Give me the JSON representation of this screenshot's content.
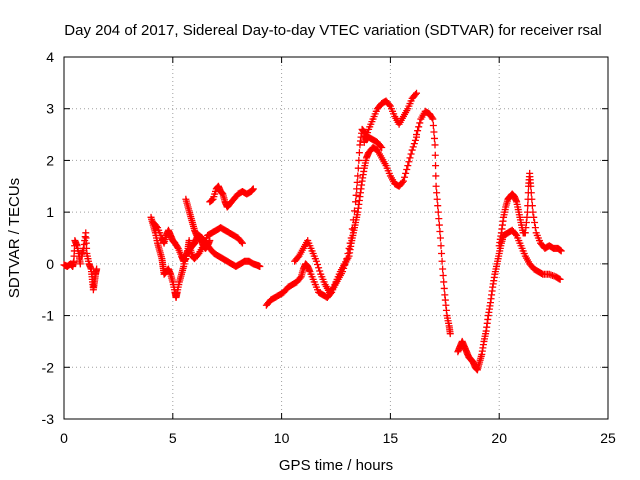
{
  "chart_data": {
    "type": "scatter",
    "title": "Day 204 of 2017, Sidereal Day-to-day VTEC variation (SDTVAR) for receiver rsal",
    "xlabel": "GPS time / hours",
    "ylabel": "SDTVAR / TECUs",
    "xlim": [
      0,
      25
    ],
    "ylim": [
      -3,
      4
    ],
    "xticks": [
      0,
      5,
      10,
      15,
      20,
      25
    ],
    "yticks": [
      -3,
      -2,
      -1,
      0,
      1,
      2,
      3,
      4
    ],
    "grid": true,
    "marker": "plus",
    "color": "#ff0000",
    "series": [
      {
        "points": [
          [
            0.0,
            -0.02
          ],
          [
            0.15,
            -0.05
          ],
          [
            0.3,
            0.0
          ],
          [
            0.4,
            -0.05
          ],
          [
            0.45,
            0.05
          ],
          [
            0.5,
            0.45
          ],
          [
            0.6,
            0.35
          ],
          [
            0.7,
            0.15
          ],
          [
            0.75,
            0.0
          ]
        ]
      },
      {
        "points": [
          [
            0.8,
            0.15
          ],
          [
            0.9,
            0.3
          ],
          [
            1.0,
            0.6
          ],
          [
            1.05,
            0.2
          ],
          [
            1.15,
            0.0
          ],
          [
            1.25,
            -0.1
          ],
          [
            1.3,
            -0.3
          ],
          [
            1.35,
            -0.5
          ],
          [
            1.4,
            -0.35
          ],
          [
            1.45,
            -0.2
          ],
          [
            1.5,
            -0.1
          ]
        ]
      },
      {
        "points": [
          [
            4.0,
            0.9
          ],
          [
            4.1,
            0.75
          ],
          [
            4.2,
            0.6
          ],
          [
            4.3,
            0.4
          ],
          [
            4.4,
            0.25
          ],
          [
            4.5,
            0.1
          ],
          [
            4.55,
            -0.05
          ],
          [
            4.6,
            -0.2
          ],
          [
            4.7,
            -0.15
          ],
          [
            4.8,
            -0.1
          ],
          [
            4.9,
            -0.2
          ],
          [
            5.0,
            -0.35
          ],
          [
            5.1,
            -0.55
          ],
          [
            5.15,
            -0.65
          ],
          [
            5.2,
            -0.55
          ],
          [
            5.3,
            -0.35
          ],
          [
            5.4,
            -0.2
          ],
          [
            5.5,
            -0.05
          ],
          [
            5.6,
            0.15
          ],
          [
            5.7,
            0.25
          ],
          [
            5.8,
            0.3
          ],
          [
            5.9,
            0.35
          ],
          [
            6.0,
            0.4
          ],
          [
            6.1,
            0.5
          ],
          [
            6.2,
            0.55
          ],
          [
            6.35,
            0.5
          ],
          [
            6.5,
            0.4
          ],
          [
            6.7,
            0.3
          ],
          [
            6.9,
            0.2
          ],
          [
            7.1,
            0.15
          ],
          [
            7.3,
            0.1
          ],
          [
            7.5,
            0.05
          ],
          [
            7.7,
            0.0
          ],
          [
            7.9,
            -0.05
          ],
          [
            8.1,
            0.0
          ],
          [
            8.3,
            0.05
          ],
          [
            8.5,
            0.05
          ],
          [
            8.7,
            0.0
          ],
          [
            8.9,
            -0.03
          ],
          [
            9.0,
            -0.05
          ]
        ]
      },
      {
        "points": [
          [
            4.1,
            0.8
          ],
          [
            4.3,
            0.7
          ],
          [
            4.5,
            0.5
          ],
          [
            4.6,
            0.4
          ],
          [
            4.7,
            0.55
          ],
          [
            4.8,
            0.65
          ],
          [
            4.9,
            0.55
          ],
          [
            5.0,
            0.45
          ],
          [
            5.1,
            0.4
          ],
          [
            5.25,
            0.3
          ],
          [
            5.4,
            0.15
          ],
          [
            5.5,
            0.05
          ],
          [
            5.6,
            0.1
          ],
          [
            5.7,
            0.3
          ],
          [
            5.75,
            0.45
          ],
          [
            5.8,
            0.3
          ],
          [
            5.9,
            0.15
          ],
          [
            6.0,
            0.1
          ],
          [
            6.2,
            0.2
          ],
          [
            6.4,
            0.35
          ],
          [
            6.6,
            0.55
          ],
          [
            6.8,
            0.6
          ],
          [
            7.0,
            0.65
          ],
          [
            7.2,
            0.7
          ],
          [
            7.4,
            0.65
          ],
          [
            7.6,
            0.6
          ],
          [
            7.8,
            0.55
          ],
          [
            8.0,
            0.5
          ],
          [
            8.2,
            0.4
          ]
        ]
      },
      {
        "points": [
          [
            5.6,
            1.25
          ],
          [
            5.7,
            1.1
          ],
          [
            5.8,
            0.95
          ],
          [
            5.9,
            0.8
          ],
          [
            6.0,
            0.65
          ],
          [
            6.1,
            0.55
          ],
          [
            6.2,
            0.5
          ],
          [
            6.3,
            0.45
          ],
          [
            6.4,
            0.35
          ],
          [
            6.5,
            0.3
          ],
          [
            6.6,
            0.35
          ],
          [
            6.7,
            0.45
          ]
        ]
      },
      {
        "points": [
          [
            6.7,
            1.2
          ],
          [
            6.85,
            1.25
          ],
          [
            7.0,
            1.45
          ],
          [
            7.1,
            1.5
          ],
          [
            7.2,
            1.4
          ],
          [
            7.3,
            1.35
          ],
          [
            7.4,
            1.2
          ],
          [
            7.5,
            1.1
          ],
          [
            7.6,
            1.15
          ],
          [
            7.8,
            1.25
          ],
          [
            8.0,
            1.35
          ],
          [
            8.2,
            1.4
          ],
          [
            8.4,
            1.35
          ],
          [
            8.6,
            1.4
          ],
          [
            8.7,
            1.45
          ]
        ]
      },
      {
        "points": [
          [
            9.3,
            -0.8
          ],
          [
            9.5,
            -0.7
          ],
          [
            9.7,
            -0.65
          ],
          [
            9.9,
            -0.6
          ],
          [
            10.1,
            -0.55
          ],
          [
            10.3,
            -0.45
          ],
          [
            10.5,
            -0.4
          ],
          [
            10.7,
            -0.35
          ],
          [
            10.9,
            -0.25
          ],
          [
            11.0,
            -0.1
          ],
          [
            11.1,
            0.0
          ],
          [
            11.2,
            -0.05
          ],
          [
            11.3,
            -0.15
          ],
          [
            11.5,
            -0.35
          ],
          [
            11.7,
            -0.55
          ],
          [
            11.9,
            -0.6
          ],
          [
            12.1,
            -0.65
          ],
          [
            12.3,
            -0.55
          ],
          [
            12.5,
            -0.35
          ],
          [
            12.7,
            -0.15
          ],
          [
            12.9,
            0.0
          ],
          [
            13.1,
            0.15
          ],
          [
            13.2,
            0.4
          ],
          [
            13.3,
            0.6
          ],
          [
            13.4,
            0.8
          ],
          [
            13.5,
            1.0
          ],
          [
            13.6,
            1.3
          ],
          [
            13.7,
            1.6
          ],
          [
            13.8,
            1.85
          ],
          [
            13.9,
            2.05
          ],
          [
            14.0,
            2.15
          ],
          [
            14.2,
            2.25
          ],
          [
            14.4,
            2.2
          ],
          [
            14.6,
            2.05
          ],
          [
            14.8,
            1.9
          ],
          [
            15.0,
            1.7
          ],
          [
            15.2,
            1.55
          ],
          [
            15.4,
            1.5
          ],
          [
            15.6,
            1.6
          ],
          [
            15.8,
            1.9
          ],
          [
            16.0,
            2.2
          ],
          [
            16.2,
            2.45
          ]
        ]
      },
      {
        "points": [
          [
            10.6,
            0.05
          ],
          [
            10.8,
            0.15
          ],
          [
            11.0,
            0.3
          ],
          [
            11.2,
            0.45
          ],
          [
            11.4,
            0.25
          ],
          [
            11.6,
            0.05
          ],
          [
            11.8,
            -0.2
          ],
          [
            12.0,
            -0.4
          ],
          [
            12.2,
            -0.55
          ],
          [
            12.4,
            -0.45
          ],
          [
            12.6,
            -0.3
          ],
          [
            12.8,
            -0.15
          ],
          [
            13.0,
            0.1
          ],
          [
            13.2,
            0.5
          ],
          [
            13.4,
            1.2
          ],
          [
            13.5,
            1.7
          ],
          [
            13.6,
            2.3
          ],
          [
            13.7,
            2.6
          ],
          [
            13.8,
            2.55
          ],
          [
            13.9,
            2.4
          ],
          [
            14.0,
            2.45
          ],
          [
            14.2,
            2.4
          ],
          [
            14.4,
            2.35
          ],
          [
            14.6,
            2.25
          ]
        ]
      },
      {
        "points": [
          [
            13.8,
            2.35
          ],
          [
            14.0,
            2.6
          ],
          [
            14.2,
            2.8
          ],
          [
            14.4,
            3.0
          ],
          [
            14.6,
            3.1
          ],
          [
            14.8,
            3.15
          ],
          [
            15.0,
            3.05
          ],
          [
            15.2,
            2.85
          ],
          [
            15.4,
            2.7
          ],
          [
            15.6,
            2.85
          ],
          [
            15.8,
            3.0
          ],
          [
            16.0,
            3.2
          ],
          [
            16.2,
            3.3
          ]
        ]
      },
      {
        "points": [
          [
            16.2,
            2.5
          ],
          [
            16.4,
            2.8
          ],
          [
            16.6,
            2.95
          ],
          [
            16.8,
            2.9
          ],
          [
            16.95,
            2.8
          ],
          [
            17.05,
            2.3
          ],
          [
            17.1,
            1.5
          ],
          [
            17.2,
            1.0
          ],
          [
            17.3,
            0.5
          ],
          [
            17.4,
            -0.1
          ],
          [
            17.5,
            -0.6
          ],
          [
            17.6,
            -1.0
          ],
          [
            17.7,
            -1.2
          ],
          [
            17.75,
            -1.35
          ]
        ]
      },
      {
        "points": [
          [
            18.1,
            -1.7
          ],
          [
            18.2,
            -1.6
          ],
          [
            18.3,
            -1.5
          ],
          [
            18.4,
            -1.6
          ],
          [
            18.5,
            -1.7
          ],
          [
            18.6,
            -1.8
          ],
          [
            18.7,
            -1.85
          ],
          [
            18.8,
            -1.9
          ],
          [
            18.9,
            -2.0
          ],
          [
            19.0,
            -2.05
          ],
          [
            19.1,
            -1.9
          ],
          [
            19.2,
            -1.75
          ],
          [
            19.3,
            -1.5
          ],
          [
            19.4,
            -1.3
          ],
          [
            19.5,
            -1.0
          ],
          [
            19.6,
            -0.75
          ],
          [
            19.7,
            -0.45
          ],
          [
            19.8,
            -0.2
          ],
          [
            19.9,
            0.0
          ],
          [
            20.0,
            0.2
          ],
          [
            20.1,
            0.4
          ],
          [
            20.2,
            0.55
          ],
          [
            20.4,
            0.6
          ],
          [
            20.6,
            0.65
          ],
          [
            20.8,
            0.55
          ],
          [
            21.0,
            0.35
          ],
          [
            21.2,
            0.15
          ],
          [
            21.4,
            0.0
          ],
          [
            21.6,
            -0.1
          ],
          [
            21.8,
            -0.15
          ],
          [
            22.0,
            -0.2
          ],
          [
            22.3,
            -0.2
          ],
          [
            22.6,
            -0.25
          ],
          [
            22.8,
            -0.3
          ]
        ]
      },
      {
        "points": [
          [
            20.0,
            0.35
          ],
          [
            20.1,
            0.6
          ],
          [
            20.2,
            0.9
          ],
          [
            20.3,
            1.1
          ],
          [
            20.4,
            1.25
          ],
          [
            20.5,
            1.3
          ],
          [
            20.6,
            1.35
          ],
          [
            20.7,
            1.3
          ],
          [
            20.8,
            1.2
          ],
          [
            20.9,
            1.0
          ],
          [
            21.0,
            0.8
          ],
          [
            21.1,
            0.6
          ],
          [
            21.2,
            0.6
          ],
          [
            21.3,
            1.0
          ],
          [
            21.35,
            1.5
          ],
          [
            21.4,
            1.75
          ],
          [
            21.45,
            1.5
          ],
          [
            21.55,
            1.0
          ],
          [
            21.7,
            0.6
          ],
          [
            21.9,
            0.4
          ],
          [
            22.1,
            0.3
          ],
          [
            22.3,
            0.35
          ],
          [
            22.5,
            0.3
          ],
          [
            22.7,
            0.3
          ],
          [
            22.85,
            0.25
          ]
        ]
      }
    ]
  }
}
